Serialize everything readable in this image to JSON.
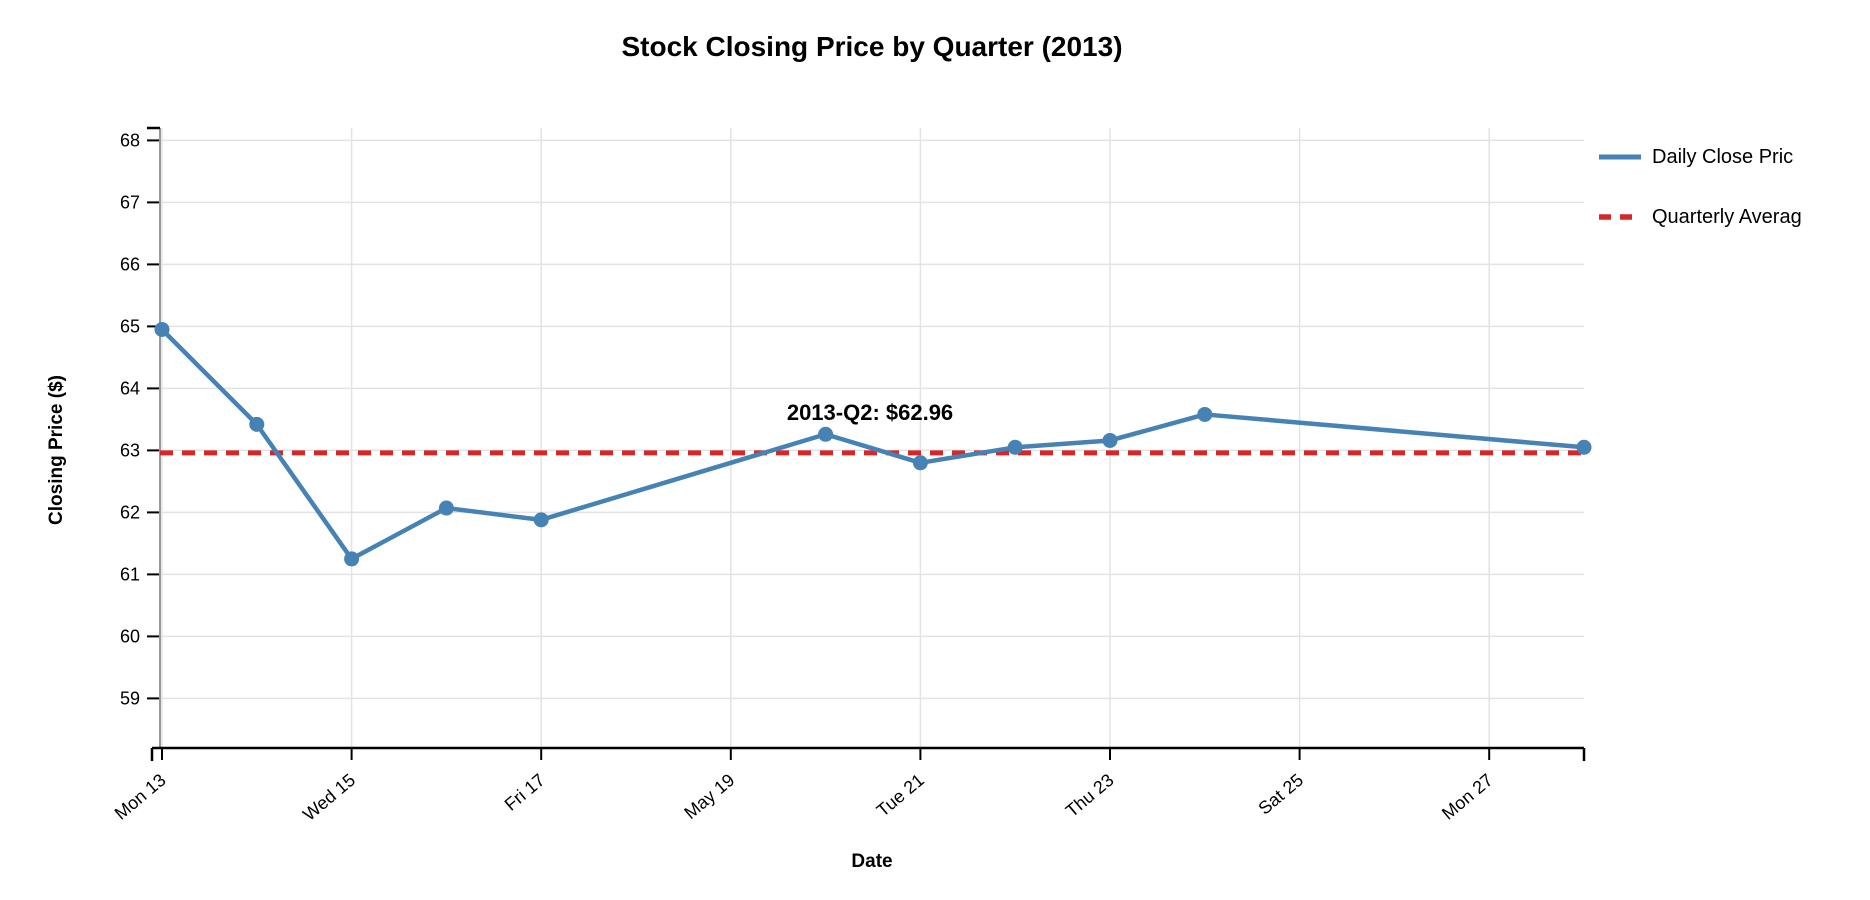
{
  "legend": {
    "items": [
      {
        "label": "Daily Close Pric"
      },
      {
        "label": "Quarterly Averag"
      }
    ]
  },
  "colors": {
    "line_blue": "#4682B4",
    "dashed_red": "#d62728",
    "grid": "#e3e3e3",
    "y_axis_domain": "#999999",
    "x_axis_domain": "#000000",
    "text": "#000000"
  },
  "chart_data": {
    "type": "line",
    "title": "Stock Closing Price by Quarter (2013)",
    "xlabel": "Date",
    "ylabel": "Closing Price ($)",
    "x_tick_labels": [
      "Mon 13",
      "Wed 15",
      "Fri 17",
      "May 19",
      "Tue 21",
      "Thu 23",
      "Sat 25",
      "Mon 27"
    ],
    "x_tick_days": [
      0,
      2,
      4,
      6,
      8,
      10,
      12,
      14
    ],
    "xlim_days": [
      0,
      15
    ],
    "y_ticks": [
      59,
      60,
      61,
      62,
      63,
      64,
      65,
      66,
      67,
      68
    ],
    "ylim": [
      58.2,
      68.2
    ],
    "grid": true,
    "legend_position": "outside-top-right",
    "series": [
      {
        "name": "Daily Close Price",
        "type": "line+markers",
        "color": "#4682B4",
        "dates": [
          "May 13",
          "May 14",
          "May 15",
          "May 16",
          "May 17",
          "May 20",
          "May 21",
          "May 22",
          "May 23",
          "May 24",
          "May 28"
        ],
        "day_offsets": [
          0,
          1,
          2,
          3,
          4,
          7,
          8,
          9,
          10,
          11,
          15
        ],
        "values": [
          64.95,
          63.42,
          61.25,
          62.07,
          61.88,
          63.26,
          62.8,
          63.05,
          63.16,
          63.58,
          63.05
        ]
      },
      {
        "name": "Quarterly Average",
        "type": "hline-dashed",
        "color": "#d62728",
        "value": 62.96
      }
    ],
    "annotation": {
      "text": "2013-Q2: $62.96",
      "quarter": "2013-Q2",
      "value": 62.96
    }
  }
}
